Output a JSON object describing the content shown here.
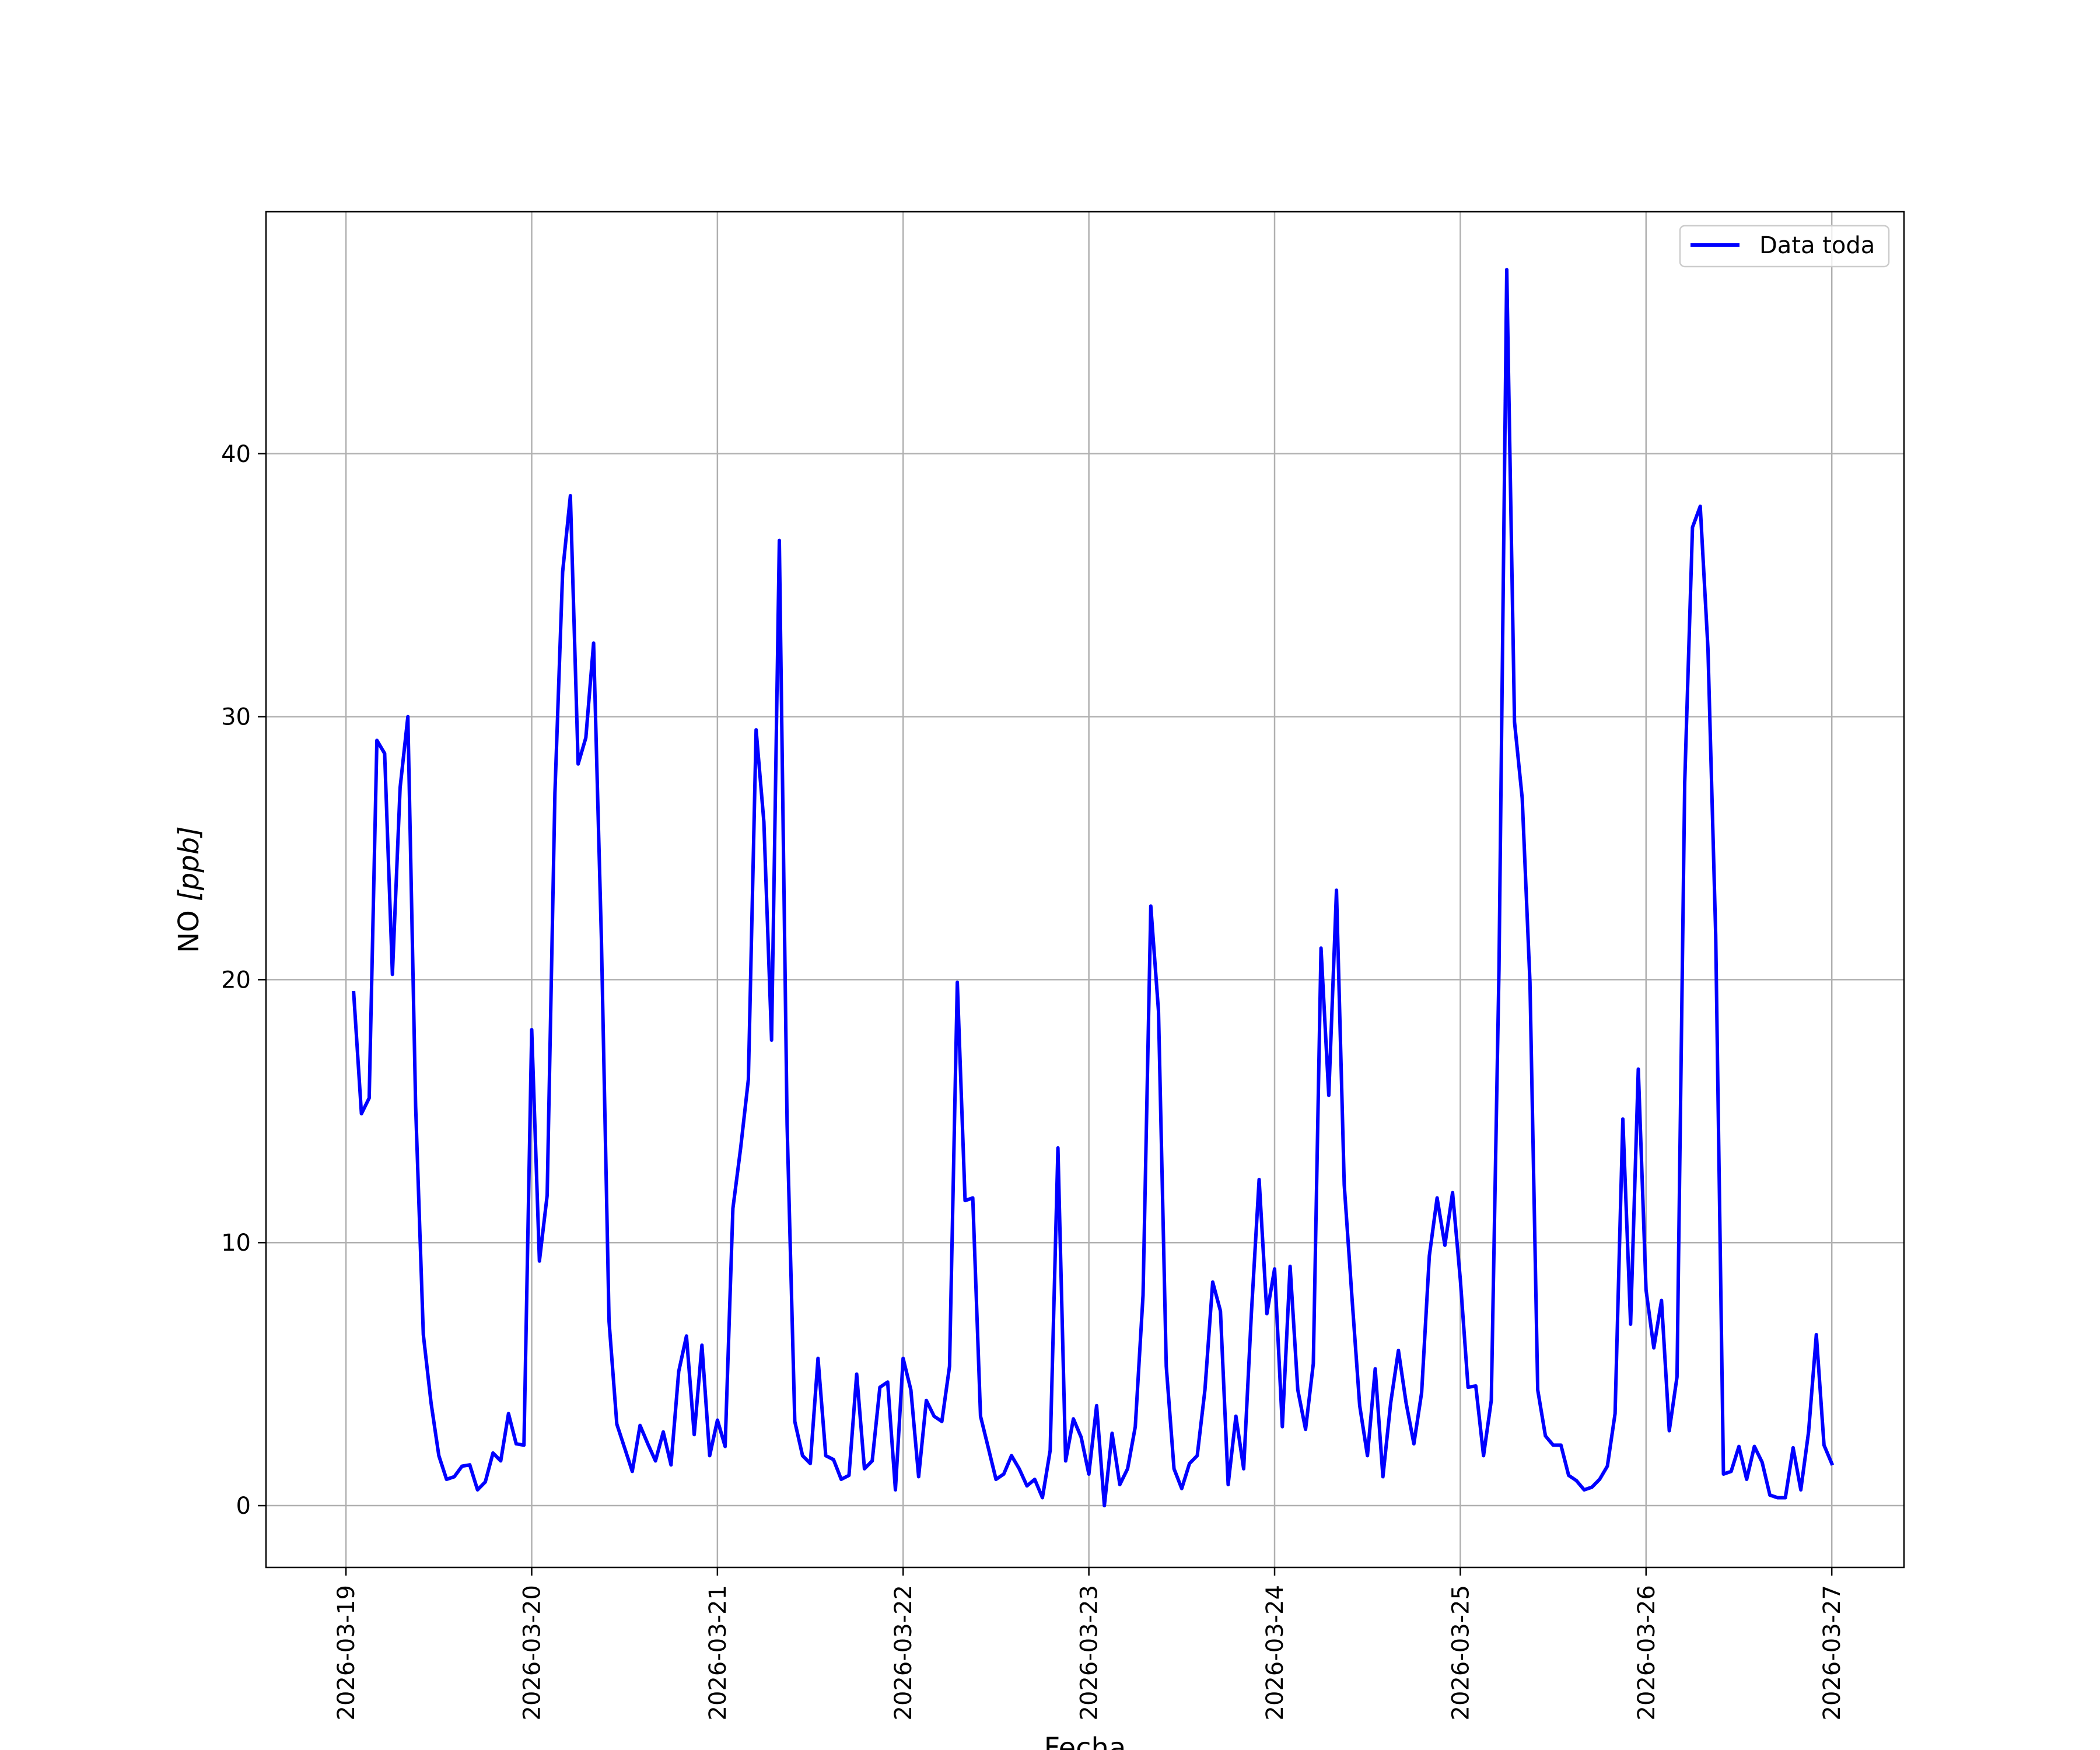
{
  "chart_data": {
    "type": "line",
    "xlabel": "Fecha",
    "ylabel_main": "NO ",
    "ylabel_unit": "[ppb]",
    "x_tick_labels": [
      "2026-03-19",
      "2026-03-20",
      "2026-03-21",
      "2026-03-22",
      "2026-03-23",
      "2026-03-24",
      "2026-03-25",
      "2026-03-26",
      "2026-03-27"
    ],
    "y_ticks": [
      0,
      10,
      20,
      30,
      40
    ],
    "xlim": [
      "2026-03-18 13:40",
      "2026-03-27 09:20"
    ],
    "ylim": [
      -2.35,
      49.2
    ],
    "grid": true,
    "legend_position": "top-right",
    "colors": {
      "series": "#0000ff",
      "grid": "#b0b0b0",
      "frame": "#000000"
    },
    "series": [
      {
        "name": "Data toda",
        "start": "2026-03-19 01:00",
        "step_hours": 1,
        "values": [
          19.5,
          14.9,
          15.5,
          29.1,
          28.6,
          20.2,
          27.3,
          30.0,
          15.2,
          6.5,
          3.9,
          1.9,
          1.0,
          1.1,
          1.5,
          1.55,
          0.6,
          0.9,
          2.0,
          1.7,
          3.5,
          2.35,
          2.3,
          18.1,
          9.3,
          11.8,
          27.1,
          35.5,
          38.4,
          28.2,
          29.2,
          32.8,
          21.6,
          7.0,
          3.1,
          2.2,
          1.3,
          3.05,
          2.35,
          1.7,
          2.8,
          1.55,
          5.1,
          6.45,
          2.7,
          6.1,
          1.9,
          3.25,
          2.25,
          11.3,
          13.6,
          16.2,
          29.5,
          26.0,
          17.7,
          36.7,
          14.5,
          3.2,
          1.9,
          1.6,
          5.6,
          1.9,
          1.75,
          1.0,
          1.15,
          5.0,
          1.4,
          1.7,
          4.5,
          4.7,
          0.6,
          5.6,
          4.4,
          1.1,
          4.0,
          3.4,
          3.2,
          5.3,
          19.9,
          11.6,
          11.7,
          3.4,
          2.2,
          1.0,
          1.2,
          1.9,
          1.4,
          0.75,
          1.0,
          0.3,
          2.1,
          13.6,
          1.7,
          3.3,
          2.6,
          1.2,
          3.8,
          0.0,
          2.75,
          0.8,
          1.4,
          3.0,
          8.0,
          22.8,
          18.8,
          5.3,
          1.4,
          0.65,
          1.6,
          1.9,
          4.4,
          8.5,
          7.4,
          0.8,
          3.4,
          1.4,
          7.3,
          12.4,
          7.3,
          9.0,
          3.0,
          9.1,
          4.4,
          2.9,
          5.4,
          21.2,
          15.6,
          23.4,
          12.2,
          7.9,
          3.8,
          1.9,
          5.2,
          1.1,
          3.9,
          5.9,
          3.9,
          2.35,
          4.3,
          9.5,
          11.7,
          9.9,
          11.9,
          8.6,
          4.5,
          4.55,
          1.9,
          4.0,
          20.4,
          47.0,
          29.8,
          26.9,
          19.9,
          4.4,
          2.65,
          2.3,
          2.3,
          1.15,
          0.95,
          0.6,
          0.7,
          1.0,
          1.5,
          3.5,
          14.7,
          6.9,
          16.6,
          8.2,
          6.0,
          7.8,
          2.85,
          4.9,
          27.5,
          37.2,
          38.0,
          32.6,
          21.7,
          1.2,
          1.3,
          2.25,
          1.0,
          2.25,
          1.65,
          0.4,
          0.3,
          0.3,
          2.2,
          0.6,
          2.8,
          6.5,
          2.3,
          1.6
        ]
      }
    ]
  }
}
